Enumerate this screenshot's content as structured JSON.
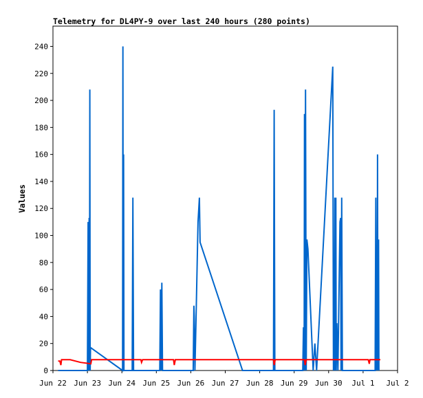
{
  "chart_data": {
    "type": "line",
    "title": "Telemetry for DL4PY-9 over last 240 hours (280 points)",
    "xlabel": "",
    "ylabel": "Values",
    "x_tick_labels": [
      "Jun 22",
      "Jun 23",
      "Jun 24",
      "Jun 25",
      "Jun 26",
      "Jun 27",
      "Jun 28",
      "Jun 29",
      "Jun 30",
      "Jul 1",
      "Jul 2"
    ],
    "y_ticks": [
      0,
      20,
      40,
      60,
      80,
      100,
      120,
      140,
      160,
      180,
      200,
      220,
      240
    ],
    "xlim_days": [
      0,
      10
    ],
    "ylim": [
      0,
      255
    ],
    "grid": false,
    "legend": "none",
    "series": [
      {
        "color": "#0066cc",
        "points": [
          [
            0.15,
            0
          ],
          [
            1.0,
            0
          ],
          [
            1.02,
            110
          ],
          [
            1.03,
            0
          ],
          [
            1.05,
            113
          ],
          [
            1.06,
            0
          ],
          [
            1.07,
            208
          ],
          [
            1.08,
            0
          ],
          [
            1.09,
            17
          ],
          [
            2.02,
            0
          ],
          [
            2.03,
            240
          ],
          [
            2.04,
            0
          ],
          [
            2.05,
            160
          ],
          [
            2.06,
            0
          ],
          [
            2.3,
            0
          ],
          [
            2.32,
            128
          ],
          [
            2.34,
            0
          ],
          [
            3.1,
            0
          ],
          [
            3.12,
            60
          ],
          [
            3.14,
            0
          ],
          [
            3.16,
            65
          ],
          [
            3.18,
            0
          ],
          [
            4.07,
            0
          ],
          [
            4.09,
            48
          ],
          [
            4.1,
            40
          ],
          [
            4.12,
            0
          ],
          [
            4.15,
            35
          ],
          [
            4.21,
            110
          ],
          [
            4.25,
            128
          ],
          [
            4.27,
            95
          ],
          [
            5.5,
            0
          ],
          [
            6.4,
            0
          ],
          [
            6.42,
            193
          ],
          [
            6.44,
            0
          ],
          [
            7.25,
            0
          ],
          [
            7.27,
            32
          ],
          [
            7.29,
            0
          ],
          [
            7.3,
            190
          ],
          [
            7.31,
            0
          ],
          [
            7.33,
            208
          ],
          [
            7.35,
            0
          ],
          [
            7.37,
            97
          ],
          [
            7.4,
            90
          ],
          [
            7.55,
            0
          ],
          [
            7.6,
            20
          ],
          [
            7.65,
            0
          ],
          [
            8.12,
            225
          ],
          [
            8.14,
            0
          ],
          [
            8.15,
            72
          ],
          [
            8.16,
            0
          ],
          [
            8.18,
            128
          ],
          [
            8.19,
            0
          ],
          [
            8.21,
            128
          ],
          [
            8.22,
            0
          ],
          [
            8.24,
            35
          ],
          [
            8.27,
            0
          ],
          [
            8.33,
            110
          ],
          [
            8.35,
            113
          ],
          [
            8.36,
            0
          ],
          [
            8.38,
            128
          ],
          [
            8.4,
            0
          ],
          [
            9.35,
            0
          ],
          [
            9.37,
            128
          ],
          [
            9.39,
            0
          ],
          [
            9.4,
            17
          ],
          [
            9.41,
            0
          ],
          [
            9.42,
            160
          ],
          [
            9.43,
            0
          ],
          [
            9.45,
            97
          ],
          [
            9.46,
            0
          ]
        ]
      },
      {
        "color": "#ff0000",
        "points": [
          [
            0.15,
            7
          ],
          [
            0.2,
            7
          ],
          [
            0.23,
            4
          ],
          [
            0.25,
            8
          ],
          [
            0.5,
            8
          ],
          [
            0.8,
            6
          ],
          [
            1.1,
            5
          ],
          [
            1.12,
            8
          ],
          [
            2.55,
            8
          ],
          [
            2.57,
            6
          ],
          [
            2.6,
            8
          ],
          [
            3.5,
            8
          ],
          [
            3.52,
            4
          ],
          [
            3.55,
            8
          ],
          [
            6.4,
            8
          ],
          [
            6.42,
            4
          ],
          [
            6.45,
            8
          ],
          [
            7.3,
            8
          ],
          [
            7.32,
            4
          ],
          [
            7.35,
            8
          ],
          [
            9.15,
            8
          ],
          [
            9.18,
            5
          ],
          [
            9.2,
            8
          ],
          [
            9.5,
            8
          ]
        ]
      }
    ]
  }
}
